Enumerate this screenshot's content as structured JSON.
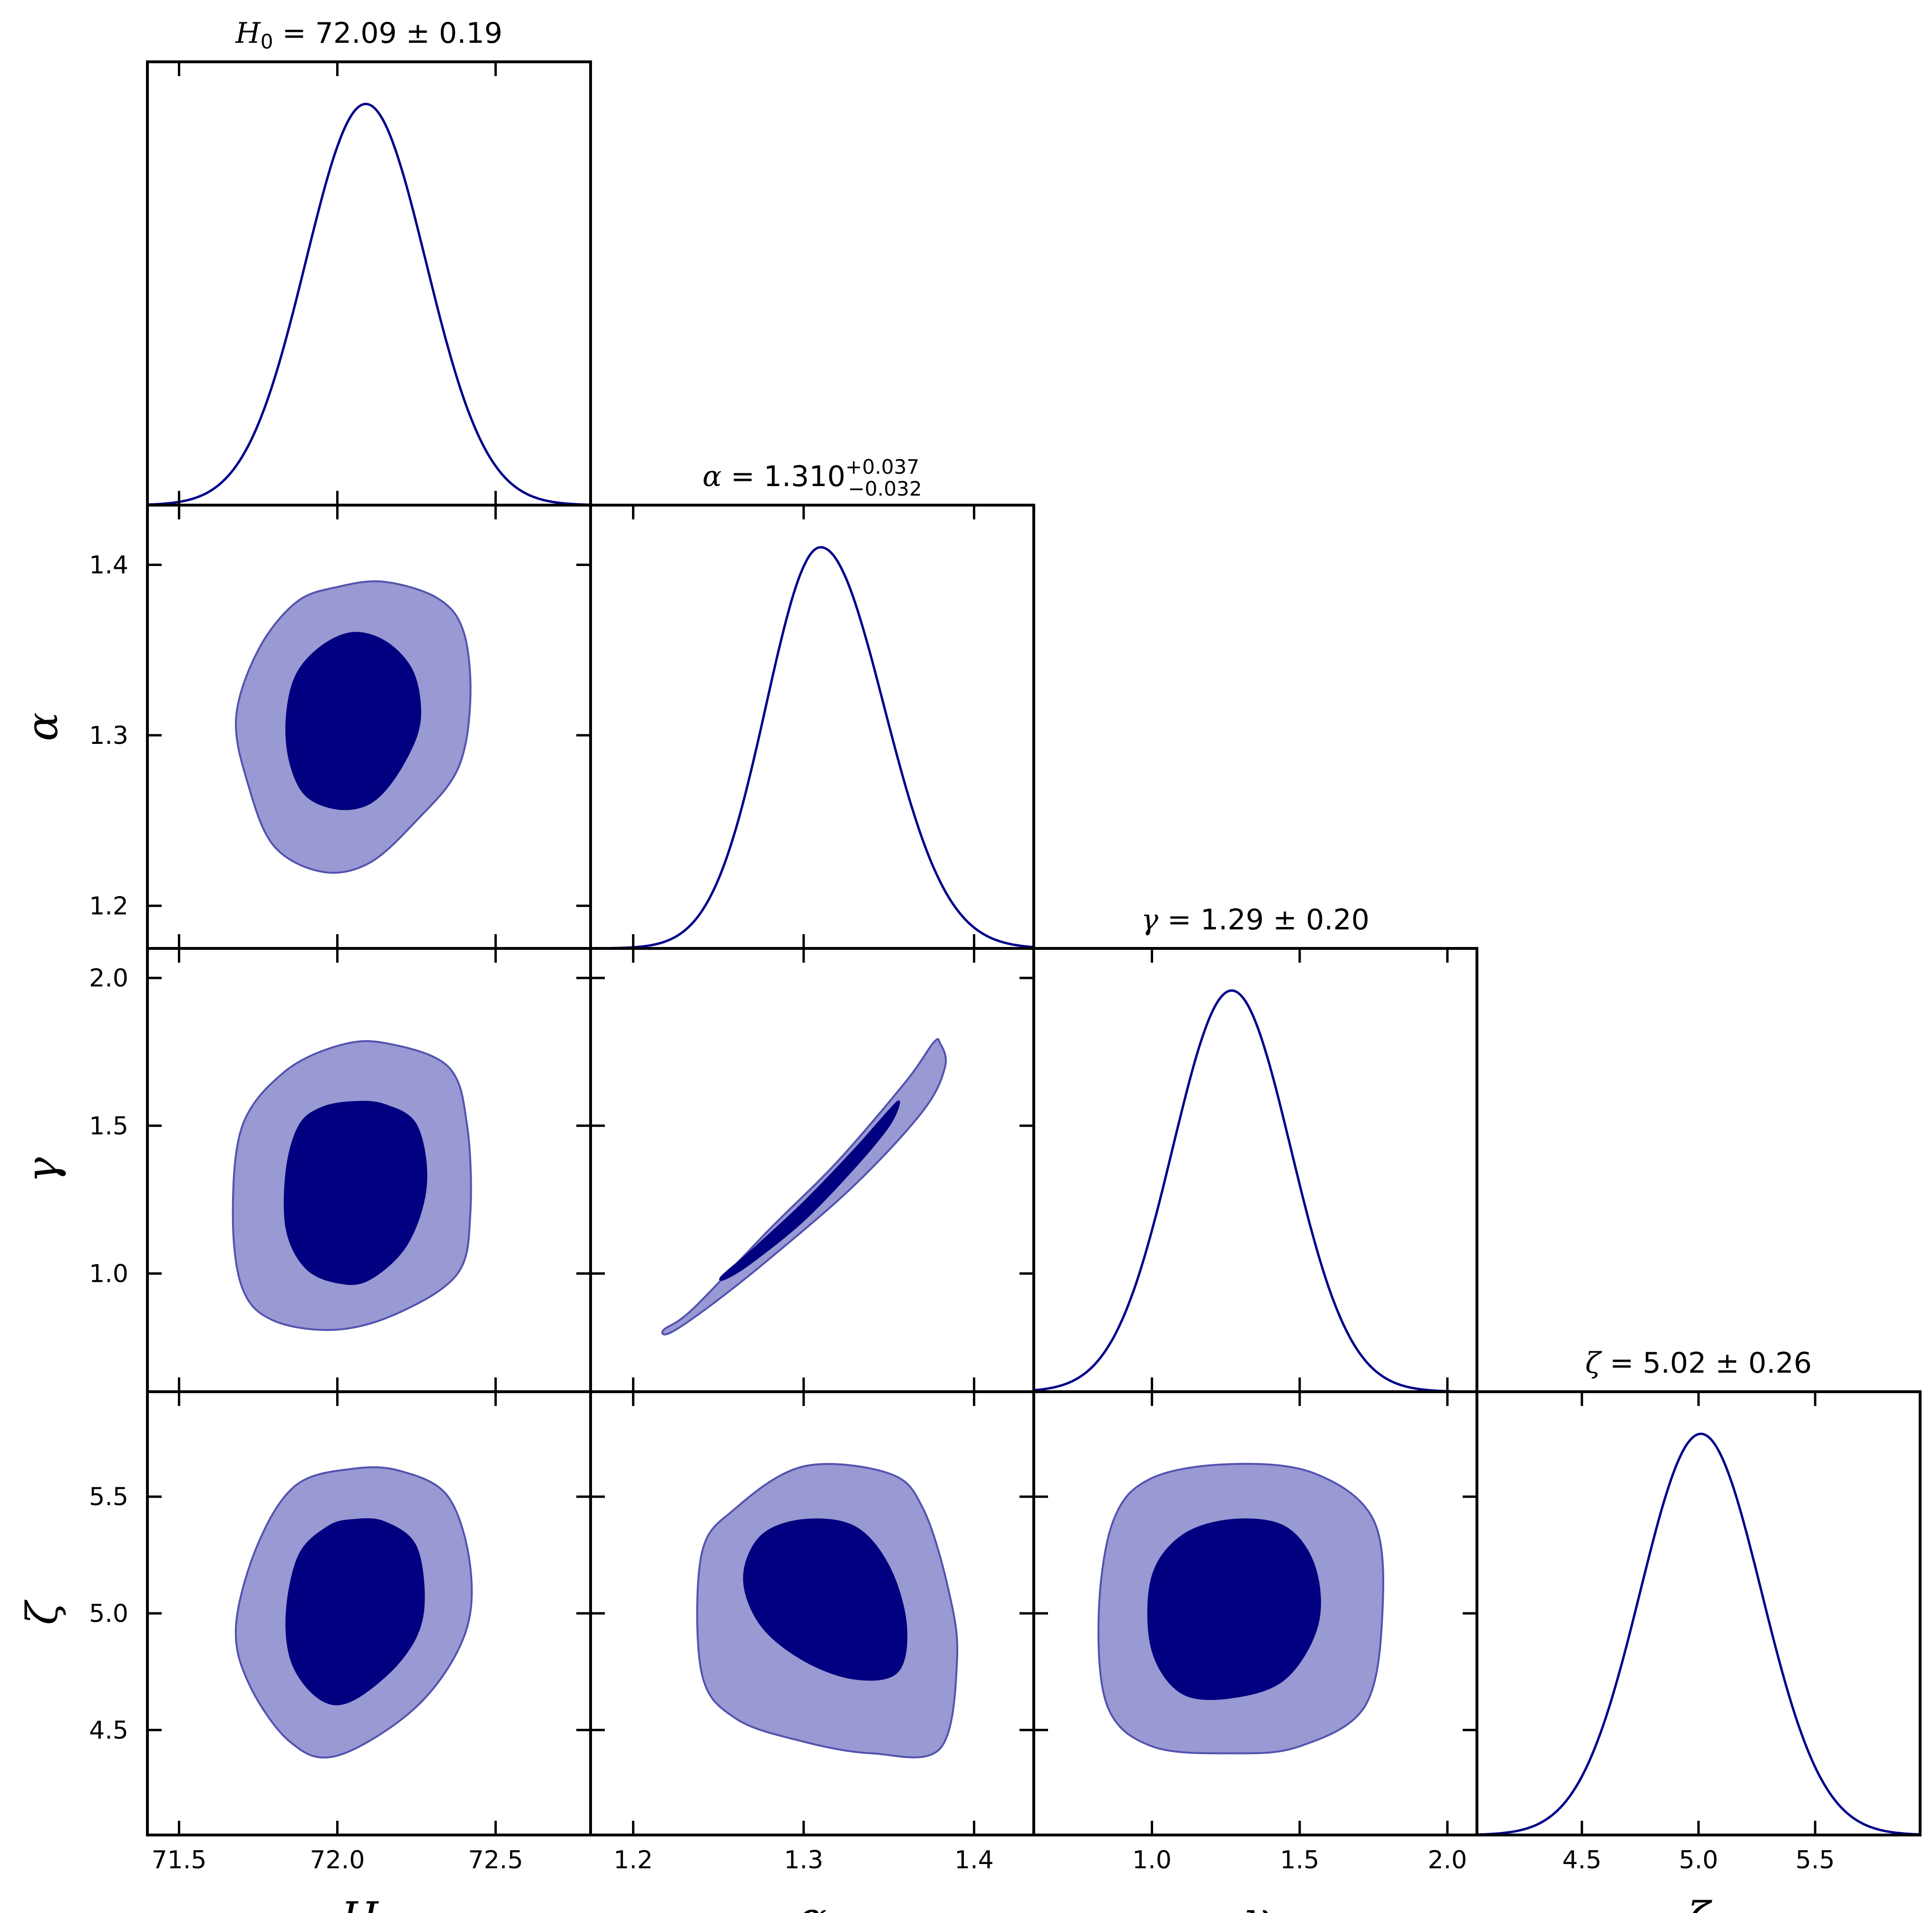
{
  "colors": {
    "line": "#00008b",
    "dark_fill": "#000080",
    "light_fill": "#9999d3",
    "light_edge": "#5252b0",
    "frame": "#000000"
  },
  "parameters": [
    {
      "key": "H0",
      "symbol": "H",
      "subscript": "0",
      "ticks": [
        71.5,
        72.0,
        72.5
      ],
      "tick_labels": [
        "71.5",
        "72.0",
        "72.5"
      ],
      "range": [
        71.4,
        72.8
      ]
    },
    {
      "key": "alpha",
      "symbol": "α",
      "subscript": "",
      "ticks": [
        1.2,
        1.3,
        1.4
      ],
      "tick_labels": [
        "1.2",
        "1.3",
        "1.4"
      ],
      "range": [
        1.175,
        1.435
      ]
    },
    {
      "key": "gamma",
      "symbol": "γ",
      "subscript": "",
      "ticks": [
        1.0,
        1.5,
        2.0
      ],
      "tick_labels": [
        "1.0",
        "1.5",
        "2.0"
      ],
      "range": [
        0.6,
        2.1
      ]
    },
    {
      "key": "zeta",
      "symbol": "ζ",
      "subscript": "",
      "ticks": [
        4.5,
        5.0,
        5.5
      ],
      "tick_labels": [
        "4.5",
        "5.0",
        "5.5"
      ],
      "range": [
        4.05,
        5.95
      ]
    }
  ],
  "titles": [
    {
      "lhs": "H",
      "lhs_sub": "0",
      "rhs": "= 72.09 ± 0.19"
    },
    {
      "lhs": "α",
      "lhs_sub": "",
      "rhs": "= 1.310",
      "sup": "+0.037",
      "sub": "−0.032"
    },
    {
      "lhs": "γ",
      "lhs_sub": "",
      "rhs": "= 1.29 ± 0.20"
    },
    {
      "lhs": "ζ",
      "lhs_sub": "",
      "rhs": "= 5.02 ± 0.26"
    }
  ],
  "chart_data": {
    "type": "corner",
    "marginals": [
      {
        "param": "H0",
        "mean": 72.09,
        "sigma": 0.19,
        "peak_at": 72.09
      },
      {
        "param": "alpha",
        "mean": 1.31,
        "sigma_plus": 0.037,
        "sigma_minus": 0.032,
        "peak_at": 1.31
      },
      {
        "param": "gamma",
        "mean": 1.29,
        "sigma": 0.2,
        "peak_at": 1.27
      },
      {
        "param": "zeta",
        "mean": 5.02,
        "sigma": 0.26,
        "peak_at": 5.01
      }
    ],
    "contours": [
      {
        "x": "H0",
        "y": "alpha",
        "inner": [
          [
            72.05,
            1.36
          ],
          [
            72.15,
            1.355
          ],
          [
            72.23,
            1.34
          ],
          [
            72.26,
            1.32
          ],
          [
            72.25,
            1.3
          ],
          [
            72.18,
            1.275
          ],
          [
            72.1,
            1.26
          ],
          [
            72.0,
            1.257
          ],
          [
            71.9,
            1.265
          ],
          [
            71.85,
            1.285
          ],
          [
            71.84,
            1.31
          ],
          [
            71.87,
            1.335
          ],
          [
            71.95,
            1.352
          ]
        ],
        "outer": [
          [
            72.0,
            1.387
          ],
          [
            72.15,
            1.39
          ],
          [
            72.32,
            1.38
          ],
          [
            72.4,
            1.36
          ],
          [
            72.42,
            1.32
          ],
          [
            72.38,
            1.28
          ],
          [
            72.25,
            1.25
          ],
          [
            72.1,
            1.225
          ],
          [
            71.95,
            1.22
          ],
          [
            71.8,
            1.235
          ],
          [
            71.72,
            1.27
          ],
          [
            71.68,
            1.31
          ],
          [
            71.75,
            1.35
          ],
          [
            71.87,
            1.378
          ]
        ]
      },
      {
        "x": "H0",
        "y": "gamma",
        "inner": [
          [
            72.05,
            1.58
          ],
          [
            72.15,
            1.57
          ],
          [
            72.25,
            1.5
          ],
          [
            72.28,
            1.3
          ],
          [
            72.22,
            1.1
          ],
          [
            72.1,
            0.98
          ],
          [
            72.0,
            0.97
          ],
          [
            71.9,
            1.02
          ],
          [
            71.84,
            1.15
          ],
          [
            71.84,
            1.35
          ],
          [
            71.88,
            1.5
          ],
          [
            71.95,
            1.56
          ]
        ],
        "outer": [
          [
            72.0,
            1.77
          ],
          [
            72.15,
            1.78
          ],
          [
            72.35,
            1.7
          ],
          [
            72.41,
            1.5
          ],
          [
            72.42,
            1.2
          ],
          [
            72.38,
            1.0
          ],
          [
            72.2,
            0.87
          ],
          [
            72.0,
            0.81
          ],
          [
            71.8,
            0.84
          ],
          [
            71.7,
            0.95
          ],
          [
            71.67,
            1.2
          ],
          [
            71.7,
            1.5
          ],
          [
            71.83,
            1.68
          ]
        ]
      },
      {
        "x": "alpha",
        "y": "gamma",
        "inner": [
          [
            1.356,
            1.58
          ],
          [
            1.35,
            1.5
          ],
          [
            1.33,
            1.36
          ],
          [
            1.3,
            1.18
          ],
          [
            1.27,
            1.04
          ],
          [
            1.255,
            0.985
          ],
          [
            1.252,
            0.99
          ],
          [
            1.27,
            1.08
          ],
          [
            1.3,
            1.24
          ],
          [
            1.33,
            1.42
          ],
          [
            1.35,
            1.55
          ]
        ],
        "outer": [
          [
            1.38,
            1.78
          ],
          [
            1.383,
            1.7
          ],
          [
            1.37,
            1.55
          ],
          [
            1.33,
            1.3
          ],
          [
            1.28,
            1.05
          ],
          [
            1.245,
            0.89
          ],
          [
            1.222,
            0.8
          ],
          [
            1.218,
            0.81
          ],
          [
            1.235,
            0.88
          ],
          [
            1.28,
            1.15
          ],
          [
            1.32,
            1.38
          ],
          [
            1.36,
            1.65
          ],
          [
            1.376,
            1.78
          ]
        ]
      },
      {
        "x": "H0",
        "y": "zeta",
        "inner": [
          [
            72.05,
            5.4
          ],
          [
            72.15,
            5.39
          ],
          [
            72.25,
            5.28
          ],
          [
            72.27,
            5.0
          ],
          [
            72.2,
            4.8
          ],
          [
            72.05,
            4.63
          ],
          [
            71.95,
            4.63
          ],
          [
            71.86,
            4.78
          ],
          [
            71.84,
            5.0
          ],
          [
            71.88,
            5.25
          ],
          [
            71.97,
            5.37
          ]
        ],
        "outer": [
          [
            72.05,
            5.62
          ],
          [
            72.2,
            5.61
          ],
          [
            72.35,
            5.5
          ],
          [
            72.42,
            5.2
          ],
          [
            72.4,
            4.9
          ],
          [
            72.25,
            4.6
          ],
          [
            72.0,
            4.39
          ],
          [
            71.85,
            4.45
          ],
          [
            71.72,
            4.7
          ],
          [
            71.68,
            4.95
          ],
          [
            71.75,
            5.3
          ],
          [
            71.87,
            5.55
          ]
        ]
      },
      {
        "x": "alpha",
        "y": "zeta",
        "inner": [
          [
            1.3,
            5.4
          ],
          [
            1.33,
            5.37
          ],
          [
            1.35,
            5.2
          ],
          [
            1.36,
            4.95
          ],
          [
            1.355,
            4.75
          ],
          [
            1.33,
            4.72
          ],
          [
            1.3,
            4.8
          ],
          [
            1.275,
            4.95
          ],
          [
            1.265,
            5.15
          ],
          [
            1.275,
            5.33
          ]
        ],
        "outer": [
          [
            1.3,
            5.63
          ],
          [
            1.35,
            5.6
          ],
          [
            1.37,
            5.45
          ],
          [
            1.385,
            5.1
          ],
          [
            1.39,
            4.8
          ],
          [
            1.38,
            4.42
          ],
          [
            1.34,
            4.4
          ],
          [
            1.3,
            4.45
          ],
          [
            1.26,
            4.55
          ],
          [
            1.24,
            4.75
          ],
          [
            1.24,
            5.25
          ],
          [
            1.26,
            5.45
          ]
        ]
      },
      {
        "x": "gamma",
        "y": "zeta",
        "inner": [
          [
            1.27,
            5.4
          ],
          [
            1.45,
            5.37
          ],
          [
            1.55,
            5.2
          ],
          [
            1.56,
            4.95
          ],
          [
            1.45,
            4.72
          ],
          [
            1.27,
            4.64
          ],
          [
            1.1,
            4.66
          ],
          [
            1.0,
            4.85
          ],
          [
            1.0,
            5.15
          ],
          [
            1.1,
            5.33
          ]
        ],
        "outer": [
          [
            1.27,
            5.64
          ],
          [
            1.55,
            5.6
          ],
          [
            1.75,
            5.4
          ],
          [
            1.78,
            5.0
          ],
          [
            1.72,
            4.6
          ],
          [
            1.5,
            4.43
          ],
          [
            1.27,
            4.4
          ],
          [
            1.0,
            4.43
          ],
          [
            0.85,
            4.6
          ],
          [
            0.82,
            5.0
          ],
          [
            0.87,
            5.4
          ],
          [
            1.0,
            5.58
          ]
        ]
      }
    ]
  }
}
